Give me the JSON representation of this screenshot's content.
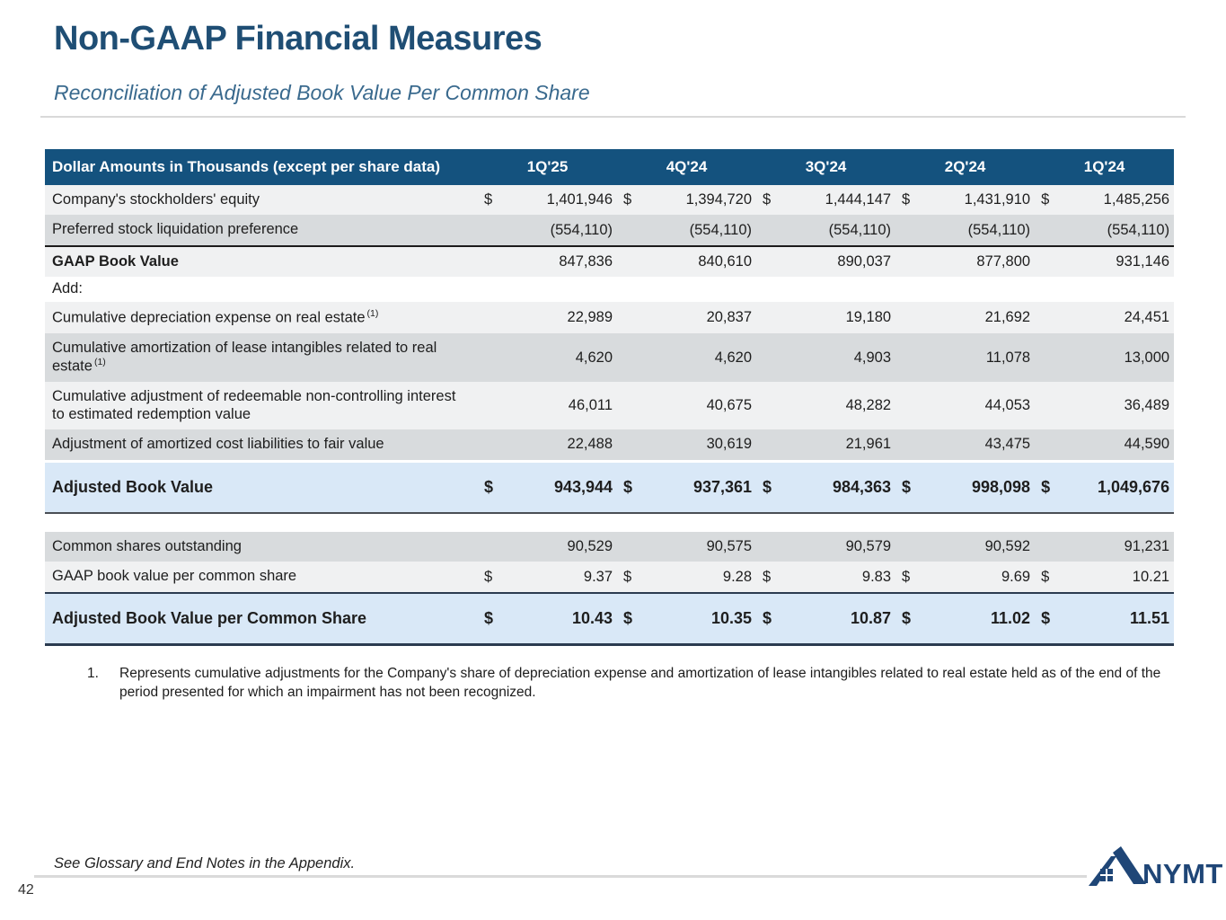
{
  "page": {
    "title": "Non-GAAP Financial Measures",
    "subtitle": "Reconciliation of Adjusted Book Value Per Common Share",
    "page_number": "42",
    "footer_note": "See Glossary and End Notes in the Appendix.",
    "logo_text": "NYMT"
  },
  "colors": {
    "header_bg": "#14527E",
    "row_light": "#F0F1F2",
    "row_gray": "#D8DBDD",
    "row_highlight_blue": "#D9E8F7",
    "title_navy": "#1F4E74",
    "subtitle_blue": "#3A6A8E",
    "logo_navy": "#1F4677"
  },
  "table": {
    "header": {
      "label": "Dollar Amounts in Thousands (except per share data)",
      "columns": [
        "1Q'25",
        "4Q'24",
        "3Q'24",
        "2Q'24",
        "1Q'24"
      ]
    },
    "rows": [
      {
        "label": "Company's stockholders' equity",
        "shade": "light",
        "dollar": true,
        "values": [
          "1,401,946",
          "1,394,720",
          "1,444,147",
          "1,431,910",
          "1,485,256"
        ]
      },
      {
        "label": "Preferred stock liquidation preference",
        "shade": "gray",
        "bottom": "black",
        "values": [
          "(554,110)",
          "(554,110)",
          "(554,110)",
          "(554,110)",
          "(554,110)"
        ]
      },
      {
        "label": "GAAP Book Value",
        "shade": "light",
        "bold_label": true,
        "values": [
          "847,836",
          "840,610",
          "890,037",
          "877,800",
          "931,146"
        ]
      },
      {
        "label": "Add:",
        "shade": "white",
        "values": [
          "",
          "",
          "",
          "",
          ""
        ]
      },
      {
        "label": "Cumulative depreciation expense on real estate",
        "sup": "(1)",
        "shade": "light",
        "values": [
          "22,989",
          "20,837",
          "19,180",
          "21,692",
          "24,451"
        ]
      },
      {
        "label": "Cumulative amortization of lease intangibles related to real estate",
        "sup": "(1)",
        "shade": "gray",
        "values": [
          "4,620",
          "4,620",
          "4,903",
          "11,078",
          "13,000"
        ]
      },
      {
        "label": "Cumulative adjustment of redeemable non-controlling interest to estimated redemption value",
        "shade": "light",
        "values": [
          "46,011",
          "40,675",
          "48,282",
          "44,053",
          "36,489"
        ]
      },
      {
        "label": "Adjustment of amortized cost liabilities to fair value",
        "shade": "gray",
        "bottom": "black",
        "values": [
          "22,488",
          "30,619",
          "21,961",
          "43,475",
          "44,590"
        ]
      },
      {
        "label": "Adjusted Book Value",
        "shade": "blue",
        "tall": true,
        "bold_label": true,
        "bold_values": true,
        "dollar": true,
        "top": "gap",
        "bottom": "dark",
        "values": [
          "943,944",
          "937,361",
          "984,363",
          "998,098",
          "1,049,676"
        ]
      },
      {
        "type": "spacer"
      },
      {
        "label": "Common shares outstanding",
        "shade": "gray",
        "values": [
          "90,529",
          "90,575",
          "90,579",
          "90,592",
          "91,231"
        ]
      },
      {
        "label": "GAAP book value per common share",
        "shade": "light",
        "dollar": true,
        "values": [
          "9.37",
          "9.28",
          "9.83",
          "9.69",
          "10.21"
        ]
      },
      {
        "label": "Adjusted Book Value per Common Share",
        "shade": "blue",
        "tall": true,
        "bold_label": true,
        "bold_values": true,
        "dollar": true,
        "top": "navy",
        "bottom": "navy",
        "values": [
          "10.43",
          "10.35",
          "10.87",
          "11.02",
          "11.51"
        ]
      }
    ]
  },
  "footnotes": [
    {
      "number": "1.",
      "text": "Represents cumulative adjustments for the Company's share of depreciation expense and amortization of lease intangibles related to real estate held as of the end of the period presented for which an impairment has not been recognized."
    }
  ]
}
